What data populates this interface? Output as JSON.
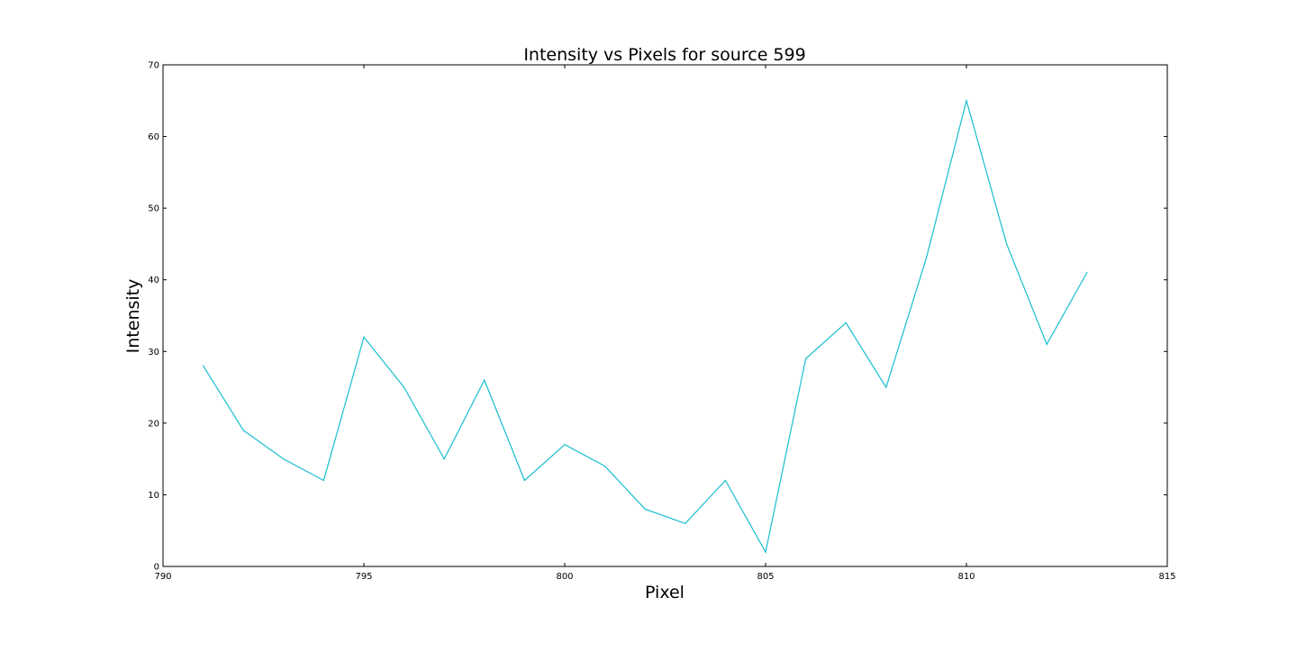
{
  "chart_data": {
    "type": "line",
    "title": "Intensity vs Pixels for source 599",
    "xlabel": "Pixel",
    "ylabel": "Intensity",
    "xlim": [
      790,
      815
    ],
    "ylim": [
      0,
      70
    ],
    "xticks": [
      790,
      795,
      800,
      805,
      810,
      815
    ],
    "yticks": [
      0,
      10,
      20,
      30,
      40,
      50,
      60,
      70
    ],
    "grid": false,
    "series": [
      {
        "color": "#17becf",
        "x": [
          791,
          792,
          793,
          794,
          795,
          796,
          797,
          798,
          799,
          800,
          801,
          802,
          803,
          804,
          805,
          806,
          807,
          808,
          809,
          810,
          811,
          812,
          813
        ],
        "y": [
          28,
          19,
          15,
          12,
          32,
          25,
          15,
          26,
          12,
          17,
          14,
          8,
          6,
          12,
          2,
          29,
          34,
          25,
          43,
          65,
          45,
          31,
          41
        ]
      }
    ]
  }
}
